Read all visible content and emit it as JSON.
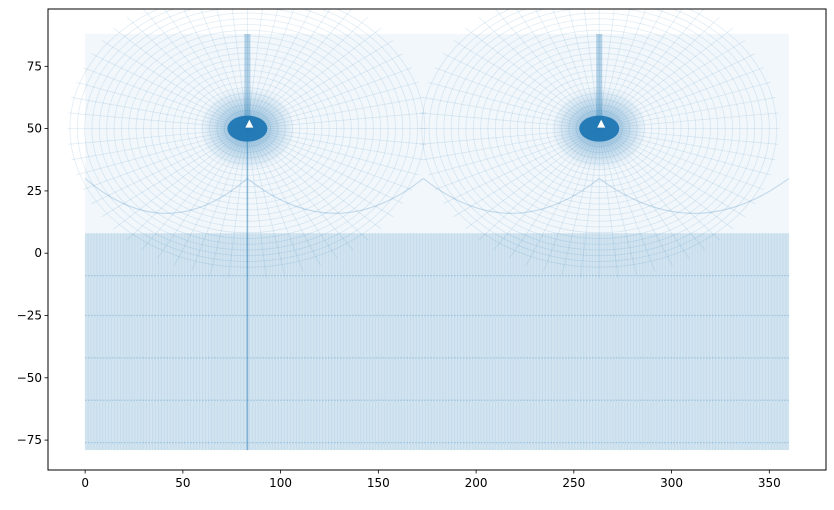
{
  "chart_data": {
    "type": "scatter",
    "title": "",
    "xlabel": "",
    "ylabel": "",
    "xlim": [
      -19,
      379
    ],
    "ylim": [
      -87,
      98
    ],
    "x_ticks": [
      0,
      50,
      100,
      150,
      200,
      250,
      300,
      350
    ],
    "y_ticks": [
      -75,
      -50,
      -25,
      0,
      25,
      50,
      75
    ],
    "x_tick_labels": [
      "0",
      "50",
      "100",
      "150",
      "200",
      "250",
      "300",
      "350"
    ],
    "y_tick_labels": [
      "−75",
      "−50",
      "−25",
      "0",
      "25",
      "50",
      "75"
    ],
    "grid": false,
    "legend": "none",
    "marker_color": "#1f77b4",
    "series": [
      {
        "description_points": "curvilinear ocean-model grid point locations (longitude, latitude)",
        "x_range": [
          0,
          360
        ],
        "y_range": [
          -79,
          88
        ],
        "regular_latitude_band": [
          -79,
          8
        ],
        "regular_latitude_lines": [
          -76,
          -59,
          -42,
          -25,
          -9
        ],
        "north_poles": [
          {
            "x": 83,
            "y": 50
          },
          {
            "x": 263,
            "y": 50
          }
        ],
        "pole_holes": [
          {
            "x": 84,
            "y": 52
          },
          {
            "x": 264,
            "y": 52
          }
        ],
        "meridian_seam_x": 83
      }
    ]
  }
}
